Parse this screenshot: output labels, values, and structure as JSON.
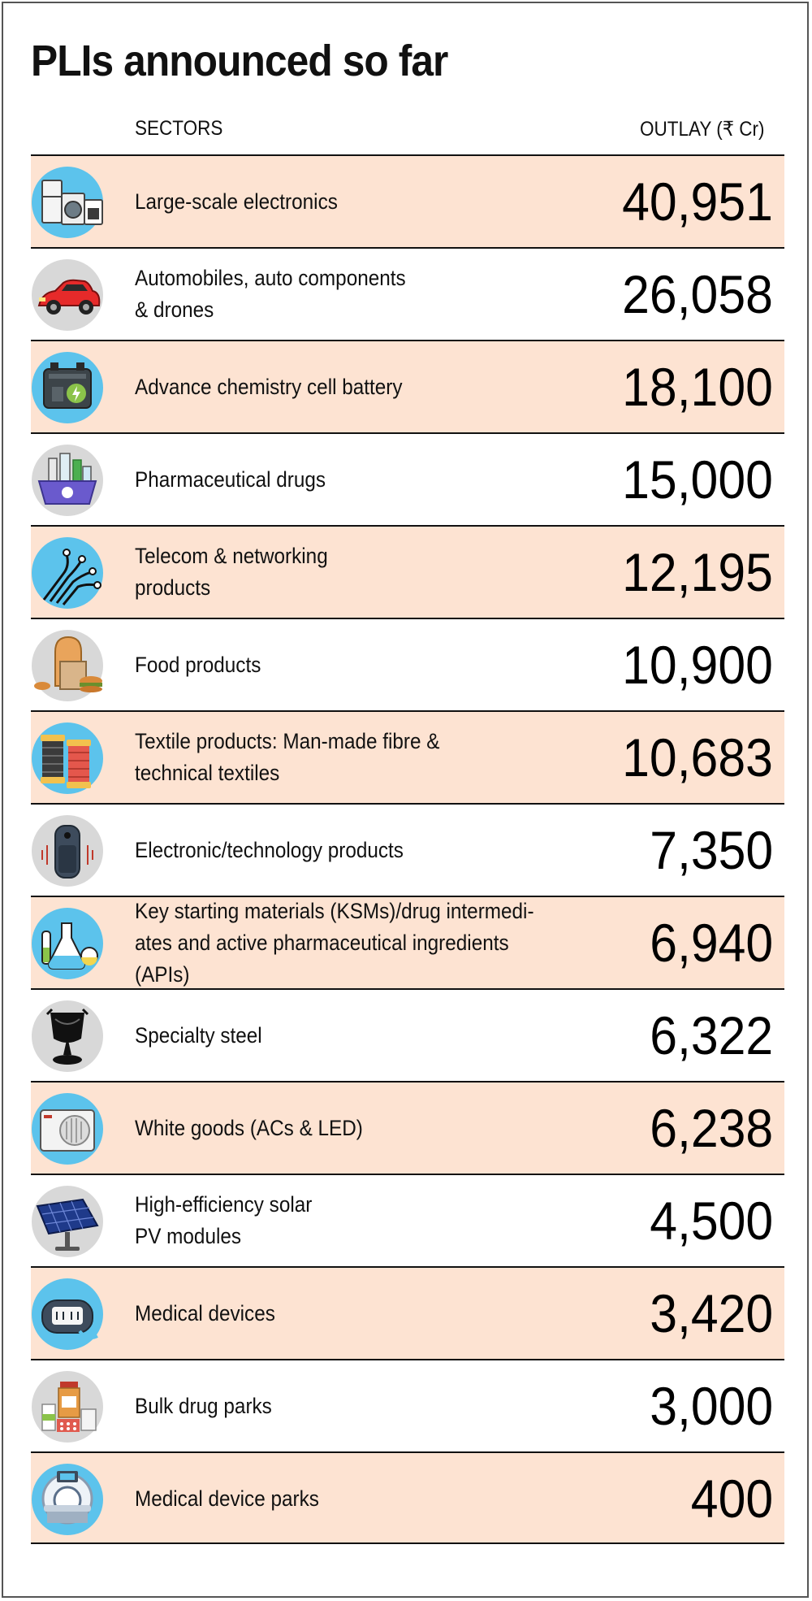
{
  "title": "PLIs announced so far",
  "headers": {
    "sector": "SECTORS",
    "outlay": "OUTLAY (₹ Cr)"
  },
  "colors": {
    "row_shade": "#fde3d2",
    "icon_blue": "#5cc3ec",
    "icon_grey": "#d8d8d8"
  },
  "chart_data": {
    "type": "table",
    "title": "PLIs announced so far",
    "columns": [
      "SECTORS",
      "OUTLAY (₹ Cr)"
    ],
    "rows": [
      {
        "sector": "Large-scale electronics",
        "outlay": "40,951",
        "value": 40951,
        "icon": "appliances-icon",
        "bg": "blue"
      },
      {
        "sector": "Automobiles, auto components\n& drones",
        "outlay": "26,058",
        "value": 26058,
        "icon": "car-icon",
        "bg": "grey"
      },
      {
        "sector": "Advance chemistry cell battery",
        "outlay": "18,100",
        "value": 18100,
        "icon": "battery-icon",
        "bg": "blue"
      },
      {
        "sector": "Pharmaceutical drugs",
        "outlay": "15,000",
        "value": 15000,
        "icon": "pharma-basket-icon",
        "bg": "grey"
      },
      {
        "sector": "Telecom & networking\nproducts",
        "outlay": "12,195",
        "value": 12195,
        "icon": "fibre-cable-icon",
        "bg": "blue"
      },
      {
        "sector": "Food products",
        "outlay": "10,900",
        "value": 10900,
        "icon": "food-icon",
        "bg": "grey"
      },
      {
        "sector": "Textile products: Man-made fibre &\ntechnical textiles",
        "outlay": "10,683",
        "value": 10683,
        "icon": "thread-spool-icon",
        "bg": "blue"
      },
      {
        "sector": "Electronic/technology products",
        "outlay": "7,350",
        "value": 7350,
        "icon": "smart-speaker-icon",
        "bg": "grey"
      },
      {
        "sector": "Key starting materials (KSMs)/drug intermedi-\nates and active pharmaceutical ingredients (APIs)",
        "outlay": "6,940",
        "value": 6940,
        "icon": "lab-flask-icon",
        "bg": "blue"
      },
      {
        "sector": "Specialty steel",
        "outlay": "6,322",
        "value": 6322,
        "icon": "steel-ladle-icon",
        "bg": "grey"
      },
      {
        "sector": "White goods (ACs & LED)",
        "outlay": "6,238",
        "value": 6238,
        "icon": "air-conditioner-icon",
        "bg": "blue"
      },
      {
        "sector": "High-efficiency solar\nPV modules",
        "outlay": "4,500",
        "value": 4500,
        "icon": "solar-panel-icon",
        "bg": "grey"
      },
      {
        "sector": "Medical devices",
        "outlay": "3,420",
        "value": 3420,
        "icon": "oximeter-icon",
        "bg": "blue"
      },
      {
        "sector": "Bulk drug parks",
        "outlay": "3,000",
        "value": 3000,
        "icon": "medicine-bottles-icon",
        "bg": "grey"
      },
      {
        "sector": "Medical device parks",
        "outlay": "400",
        "value": 400,
        "icon": "mri-scanner-icon",
        "bg": "blue"
      }
    ]
  }
}
